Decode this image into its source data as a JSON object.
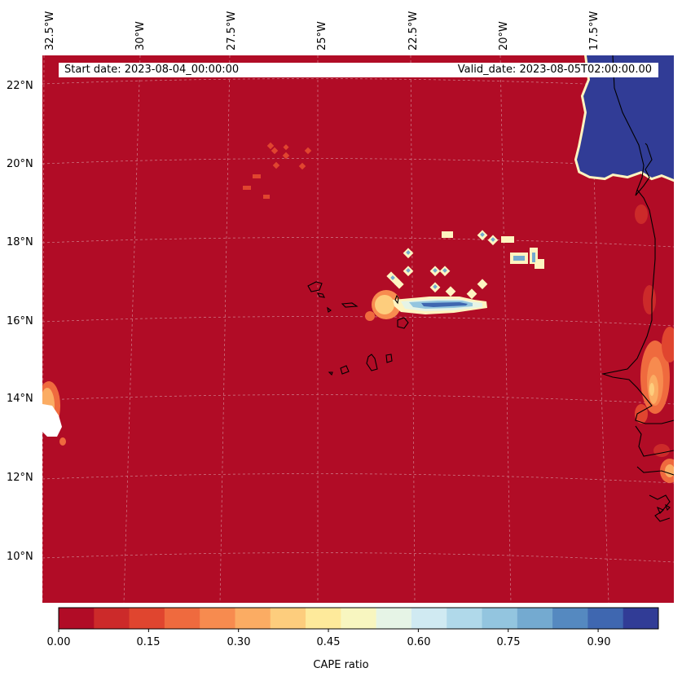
{
  "map": {
    "longitude_labels": [
      "32.5°W",
      "30°W",
      "27.5°W",
      "25°W",
      "22.5°W",
      "20°W",
      "17.5°W"
    ],
    "latitude_labels": [
      "22°N",
      "20°N",
      "18°N",
      "16°N",
      "14°N",
      "12°N",
      "10°N"
    ],
    "start_date": "Start date: 2023-08-04_00:00:00",
    "valid_date": "Valid_date: 2023-08-05T02:00:00.00",
    "background_color": "#b10c26"
  },
  "colorbar": {
    "title": "CAPE ratio",
    "tick_labels": [
      "0.00",
      "0.15",
      "0.30",
      "0.45",
      "0.60",
      "0.75",
      "0.90"
    ],
    "colors": [
      "#b10c26",
      "#cc2a2a",
      "#e0452f",
      "#ef6a3e",
      "#f78b4f",
      "#fbac63",
      "#fdcd7d",
      "#feea9b",
      "#f8f6c0",
      "#e6f4e6",
      "#d0eaf2",
      "#b0d9ea",
      "#93c5df",
      "#74aad0",
      "#5589c0",
      "#3f67b0",
      "#313c96"
    ]
  }
}
